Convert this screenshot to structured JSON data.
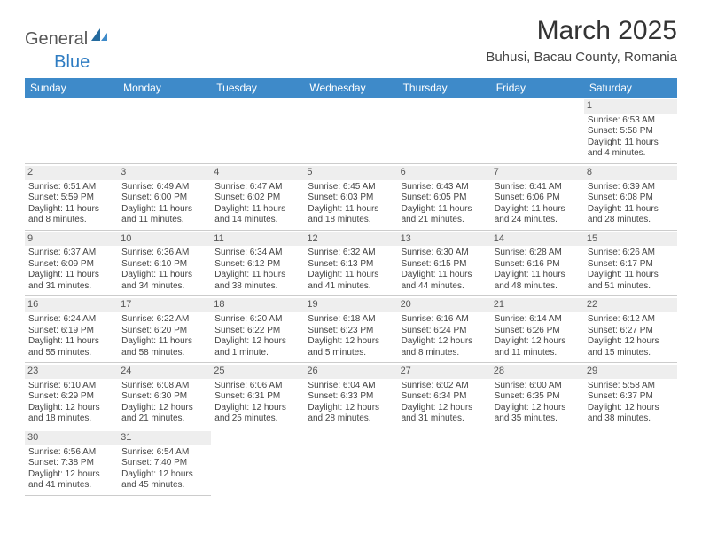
{
  "logo": {
    "text_general": "General",
    "text_blue": "Blue"
  },
  "title": "March 2025",
  "location": "Buhusi, Bacau County, Romania",
  "colors": {
    "header_bg": "#3e8ac9",
    "header_fg": "#ffffff",
    "daynum_bg": "#eeeeee",
    "row_border": "#3e8ac9"
  },
  "typography": {
    "title_fontsize": 30,
    "location_fontsize": 15,
    "dayhead_fontsize": 12,
    "cell_fontsize": 10
  },
  "day_headers": [
    "Sunday",
    "Monday",
    "Tuesday",
    "Wednesday",
    "Thursday",
    "Friday",
    "Saturday"
  ],
  "weeks": [
    [
      null,
      null,
      null,
      null,
      null,
      null,
      {
        "n": "1",
        "sunrise": "Sunrise: 6:53 AM",
        "sunset": "Sunset: 5:58 PM",
        "daylight": "Daylight: 11 hours and 4 minutes."
      }
    ],
    [
      {
        "n": "2",
        "sunrise": "Sunrise: 6:51 AM",
        "sunset": "Sunset: 5:59 PM",
        "daylight": "Daylight: 11 hours and 8 minutes."
      },
      {
        "n": "3",
        "sunrise": "Sunrise: 6:49 AM",
        "sunset": "Sunset: 6:00 PM",
        "daylight": "Daylight: 11 hours and 11 minutes."
      },
      {
        "n": "4",
        "sunrise": "Sunrise: 6:47 AM",
        "sunset": "Sunset: 6:02 PM",
        "daylight": "Daylight: 11 hours and 14 minutes."
      },
      {
        "n": "5",
        "sunrise": "Sunrise: 6:45 AM",
        "sunset": "Sunset: 6:03 PM",
        "daylight": "Daylight: 11 hours and 18 minutes."
      },
      {
        "n": "6",
        "sunrise": "Sunrise: 6:43 AM",
        "sunset": "Sunset: 6:05 PM",
        "daylight": "Daylight: 11 hours and 21 minutes."
      },
      {
        "n": "7",
        "sunrise": "Sunrise: 6:41 AM",
        "sunset": "Sunset: 6:06 PM",
        "daylight": "Daylight: 11 hours and 24 minutes."
      },
      {
        "n": "8",
        "sunrise": "Sunrise: 6:39 AM",
        "sunset": "Sunset: 6:08 PM",
        "daylight": "Daylight: 11 hours and 28 minutes."
      }
    ],
    [
      {
        "n": "9",
        "sunrise": "Sunrise: 6:37 AM",
        "sunset": "Sunset: 6:09 PM",
        "daylight": "Daylight: 11 hours and 31 minutes."
      },
      {
        "n": "10",
        "sunrise": "Sunrise: 6:36 AM",
        "sunset": "Sunset: 6:10 PM",
        "daylight": "Daylight: 11 hours and 34 minutes."
      },
      {
        "n": "11",
        "sunrise": "Sunrise: 6:34 AM",
        "sunset": "Sunset: 6:12 PM",
        "daylight": "Daylight: 11 hours and 38 minutes."
      },
      {
        "n": "12",
        "sunrise": "Sunrise: 6:32 AM",
        "sunset": "Sunset: 6:13 PM",
        "daylight": "Daylight: 11 hours and 41 minutes."
      },
      {
        "n": "13",
        "sunrise": "Sunrise: 6:30 AM",
        "sunset": "Sunset: 6:15 PM",
        "daylight": "Daylight: 11 hours and 44 minutes."
      },
      {
        "n": "14",
        "sunrise": "Sunrise: 6:28 AM",
        "sunset": "Sunset: 6:16 PM",
        "daylight": "Daylight: 11 hours and 48 minutes."
      },
      {
        "n": "15",
        "sunrise": "Sunrise: 6:26 AM",
        "sunset": "Sunset: 6:17 PM",
        "daylight": "Daylight: 11 hours and 51 minutes."
      }
    ],
    [
      {
        "n": "16",
        "sunrise": "Sunrise: 6:24 AM",
        "sunset": "Sunset: 6:19 PM",
        "daylight": "Daylight: 11 hours and 55 minutes."
      },
      {
        "n": "17",
        "sunrise": "Sunrise: 6:22 AM",
        "sunset": "Sunset: 6:20 PM",
        "daylight": "Daylight: 11 hours and 58 minutes."
      },
      {
        "n": "18",
        "sunrise": "Sunrise: 6:20 AM",
        "sunset": "Sunset: 6:22 PM",
        "daylight": "Daylight: 12 hours and 1 minute."
      },
      {
        "n": "19",
        "sunrise": "Sunrise: 6:18 AM",
        "sunset": "Sunset: 6:23 PM",
        "daylight": "Daylight: 12 hours and 5 minutes."
      },
      {
        "n": "20",
        "sunrise": "Sunrise: 6:16 AM",
        "sunset": "Sunset: 6:24 PM",
        "daylight": "Daylight: 12 hours and 8 minutes."
      },
      {
        "n": "21",
        "sunrise": "Sunrise: 6:14 AM",
        "sunset": "Sunset: 6:26 PM",
        "daylight": "Daylight: 12 hours and 11 minutes."
      },
      {
        "n": "22",
        "sunrise": "Sunrise: 6:12 AM",
        "sunset": "Sunset: 6:27 PM",
        "daylight": "Daylight: 12 hours and 15 minutes."
      }
    ],
    [
      {
        "n": "23",
        "sunrise": "Sunrise: 6:10 AM",
        "sunset": "Sunset: 6:29 PM",
        "daylight": "Daylight: 12 hours and 18 minutes."
      },
      {
        "n": "24",
        "sunrise": "Sunrise: 6:08 AM",
        "sunset": "Sunset: 6:30 PM",
        "daylight": "Daylight: 12 hours and 21 minutes."
      },
      {
        "n": "25",
        "sunrise": "Sunrise: 6:06 AM",
        "sunset": "Sunset: 6:31 PM",
        "daylight": "Daylight: 12 hours and 25 minutes."
      },
      {
        "n": "26",
        "sunrise": "Sunrise: 6:04 AM",
        "sunset": "Sunset: 6:33 PM",
        "daylight": "Daylight: 12 hours and 28 minutes."
      },
      {
        "n": "27",
        "sunrise": "Sunrise: 6:02 AM",
        "sunset": "Sunset: 6:34 PM",
        "daylight": "Daylight: 12 hours and 31 minutes."
      },
      {
        "n": "28",
        "sunrise": "Sunrise: 6:00 AM",
        "sunset": "Sunset: 6:35 PM",
        "daylight": "Daylight: 12 hours and 35 minutes."
      },
      {
        "n": "29",
        "sunrise": "Sunrise: 5:58 AM",
        "sunset": "Sunset: 6:37 PM",
        "daylight": "Daylight: 12 hours and 38 minutes."
      }
    ],
    [
      {
        "n": "30",
        "sunrise": "Sunrise: 6:56 AM",
        "sunset": "Sunset: 7:38 PM",
        "daylight": "Daylight: 12 hours and 41 minutes."
      },
      {
        "n": "31",
        "sunrise": "Sunrise: 6:54 AM",
        "sunset": "Sunset: 7:40 PM",
        "daylight": "Daylight: 12 hours and 45 minutes."
      },
      null,
      null,
      null,
      null,
      null
    ]
  ]
}
